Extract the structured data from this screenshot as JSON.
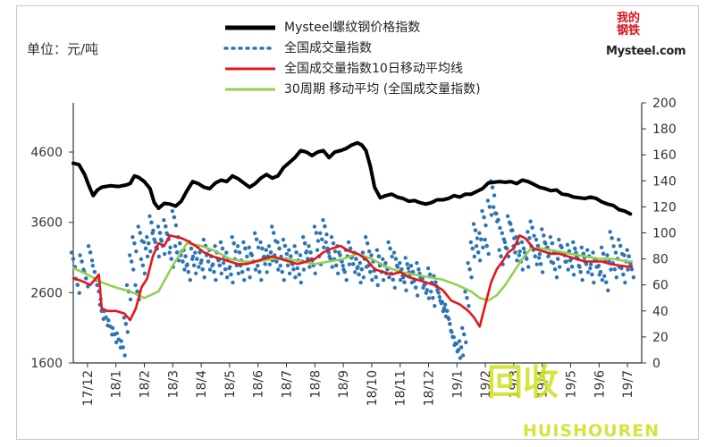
{
  "chart_data": {
    "type": "line",
    "unit_label": "单位：元/吨",
    "legend": [
      {
        "name": "Mysteel螺纹钢价格指数",
        "style": "line",
        "color": "#000000"
      },
      {
        "name": "全国成交量指数",
        "style": "dots",
        "color": "#2e75b6"
      },
      {
        "name": "全国成交量指数10日移动平均线",
        "style": "line",
        "color": "#e8141c"
      },
      {
        "name": "30周期 移动平均 (全国成交量指数)",
        "style": "line",
        "color": "#92d050"
      }
    ],
    "x_tick_labels": [
      "17/12",
      "18/1",
      "18/2",
      "18/3",
      "18/4",
      "18/5",
      "18/6",
      "18/7",
      "18/8",
      "18/9",
      "18/10",
      "18/11",
      "18/12",
      "19/1",
      "19/2",
      "19/3",
      "19/4",
      "19/5",
      "19/6",
      "19/7"
    ],
    "y_left": {
      "ticks": [
        1600,
        2600,
        3600,
        4600
      ],
      "range": [
        1600,
        5300
      ]
    },
    "y_right": {
      "ticks": [
        0,
        20,
        40,
        60,
        80,
        100,
        120,
        140,
        160,
        180,
        200
      ],
      "range": [
        0,
        200
      ]
    },
    "series": [
      {
        "name": "Mysteel螺纹钢价格指数",
        "axis": "left",
        "color": "#000000",
        "x": [
          0,
          0.2,
          0.4,
          0.55,
          0.7,
          0.85,
          1.0,
          1.3,
          1.6,
          1.85,
          2.0,
          2.15,
          2.3,
          2.5,
          2.7,
          2.85,
          3.0,
          3.2,
          3.4,
          3.6,
          3.8,
          4.0,
          4.2,
          4.4,
          4.6,
          4.8,
          5.0,
          5.2,
          5.4,
          5.6,
          5.8,
          6.0,
          6.2,
          6.4,
          6.6,
          6.8,
          7.0,
          7.2,
          7.4,
          7.6,
          7.8,
          8.0,
          8.2,
          8.4,
          8.6,
          8.8,
          9.0,
          9.2,
          9.4,
          9.6,
          9.8,
          10.0,
          10.15,
          10.3,
          10.45,
          10.6,
          10.8,
          11.0,
          11.2,
          11.4,
          11.6,
          11.8,
          12.0,
          12.2,
          12.4,
          12.6,
          12.8,
          13.0,
          13.2,
          13.4,
          13.6,
          13.8,
          14.0,
          14.2,
          14.4,
          14.6,
          14.8,
          15.0,
          15.2,
          15.4,
          15.6,
          15.8,
          16.0,
          16.2,
          16.4,
          16.6,
          16.8,
          17.0,
          17.2,
          17.4,
          17.6,
          17.8,
          18.0,
          18.2,
          18.4,
          18.6,
          18.8,
          19.0,
          19.2,
          19.4,
          19.6
        ],
        "values": [
          4440,
          4420,
          4280,
          4120,
          3980,
          4060,
          4100,
          4120,
          4110,
          4130,
          4150,
          4260,
          4240,
          4180,
          4080,
          3880,
          3800,
          3870,
          3860,
          3830,
          3900,
          4050,
          4180,
          4150,
          4100,
          4080,
          4160,
          4200,
          4180,
          4260,
          4220,
          4160,
          4100,
          4150,
          4230,
          4280,
          4230,
          4260,
          4380,
          4450,
          4520,
          4620,
          4600,
          4550,
          4600,
          4620,
          4520,
          4600,
          4620,
          4650,
          4700,
          4730,
          4700,
          4620,
          4400,
          4100,
          3950,
          3980,
          4000,
          3960,
          3940,
          3900,
          3910,
          3880,
          3860,
          3880,
          3920,
          3920,
          3940,
          3980,
          3960,
          4000,
          4000,
          4040,
          4080,
          4160,
          4170,
          4180,
          4170,
          4180,
          4150,
          4200,
          4180,
          4140,
          4100,
          4080,
          4050,
          4060,
          4000,
          3990,
          3960,
          3950,
          3940,
          3960,
          3940,
          3890,
          3860,
          3840,
          3780,
          3760,
          3720
        ]
      },
      {
        "name": "全国成交量指数",
        "axis": "right",
        "color": "#2e75b6",
        "x": [
          0,
          0.15,
          0.3,
          0.45,
          0.6,
          0.75,
          0.9,
          1.0,
          1.15,
          1.3,
          1.45,
          1.6,
          1.75,
          1.85,
          1.95,
          2.05,
          2.15,
          2.25,
          2.35,
          2.45,
          2.55,
          2.65,
          2.75,
          2.85,
          2.95,
          3.05,
          3.15,
          3.25,
          3.35,
          3.45,
          3.55,
          3.65,
          3.75,
          3.85,
          3.95,
          4.05,
          4.15,
          4.25,
          4.35,
          4.45,
          4.55,
          4.65,
          4.75,
          4.85,
          4.95,
          5.05,
          5.15,
          5.25,
          5.35,
          5.45,
          5.55,
          5.65,
          5.75,
          5.85,
          5.95,
          6.05,
          6.15,
          6.25,
          6.35,
          6.45,
          6.55,
          6.65,
          6.75,
          6.85,
          6.95,
          7.05,
          7.15,
          7.25,
          7.35,
          7.45,
          7.55,
          7.65,
          7.75,
          7.85,
          7.95,
          8.05,
          8.15,
          8.25,
          8.35,
          8.45,
          8.55,
          8.65,
          8.75,
          8.85,
          8.95,
          9.05,
          9.15,
          9.25,
          9.35,
          9.45,
          9.55,
          9.65,
          9.75,
          9.85,
          9.95,
          10.05,
          10.15,
          10.25,
          10.35,
          10.45,
          10.55,
          10.65,
          10.75,
          10.85,
          10.95,
          11.05,
          11.15,
          11.25,
          11.35,
          11.45,
          11.55,
          11.65,
          11.75,
          11.85,
          11.95,
          12.05,
          12.15,
          12.25,
          12.35,
          12.45,
          12.55,
          12.65,
          12.75,
          12.85,
          12.95,
          13.05,
          13.15,
          13.25,
          13.35,
          13.45,
          13.55,
          13.65,
          13.75,
          13.85,
          13.95,
          14.05,
          14.15,
          14.25,
          14.35,
          14.45,
          14.55,
          14.65,
          14.75,
          14.85,
          14.95,
          15.05,
          15.15,
          15.25,
          15.35,
          15.45,
          15.55,
          15.65,
          15.75,
          15.85,
          15.95,
          16.05,
          16.15,
          16.25,
          16.35,
          16.45,
          16.55,
          16.65,
          16.75,
          16.85,
          16.95,
          17.05,
          17.15,
          17.25,
          17.35,
          17.45,
          17.55,
          17.65,
          17.75,
          17.85,
          17.95,
          18.05,
          18.15,
          18.25,
          18.35,
          18.45,
          18.55,
          18.65,
          18.75,
          18.85,
          18.95,
          19.05,
          19.15,
          19.25,
          19.35,
          19.45,
          19.55,
          19.65
        ],
        "values": [
          80,
          60,
          78,
          65,
          85,
          70,
          55,
          40,
          35,
          28,
          22,
          18,
          12,
          30,
          55,
          78,
          92,
          55,
          100,
          75,
          88,
          92,
          108,
          95,
          88,
          100,
          90,
          105,
          95,
          80,
          112,
          85,
          92,
          78,
          82,
          70,
          88,
          75,
          80,
          85,
          72,
          90,
          78,
          82,
          70,
          85,
          75,
          88,
          72,
          80,
          68,
          92,
          75,
          85,
          70,
          88,
          72,
          84,
          78,
          95,
          70,
          88,
          76,
          82,
          85,
          100,
          78,
          88,
          70,
          90,
          75,
          82,
          72,
          85,
          68,
          78,
          92,
          80,
          85,
          75,
          100,
          82,
          95,
          105,
          88,
          80,
          92,
          75,
          85,
          78,
          70,
          82,
          88,
          76,
          80,
          68,
          72,
          80,
          92,
          70,
          78,
          66,
          82,
          70,
          75,
          72,
          88,
          64,
          80,
          70,
          72,
          62,
          76,
          68,
          70,
          58,
          72,
          64,
          60,
          56,
          68,
          50,
          62,
          54,
          46,
          42,
          40,
          30,
          20,
          15,
          10,
          12,
          22,
          50,
          72,
          88,
          102,
          85,
          95,
          112,
          90,
          120,
          135,
          115,
          110,
          82,
          95,
          88,
          108,
          102,
          85,
          92,
          78,
          88,
          80,
          96,
          104,
          82,
          90,
          76,
          98,
          88,
          84,
          92,
          72,
          80,
          90,
          84,
          78,
          86,
          74,
          88,
          80,
          70,
          84,
          76,
          82,
          68,
          80,
          74,
          70,
          84,
          62,
          78,
          96,
          72,
          80,
          90,
          68,
          78,
          82,
          72
        ],
        "chart_type": "scatter"
      },
      {
        "name": "全国成交量指数10日移动平均线",
        "axis": "right",
        "color": "#e8141c",
        "x": [
          0,
          0.3,
          0.6,
          0.9,
          1.0,
          1.2,
          1.5,
          1.8,
          2.0,
          2.2,
          2.4,
          2.6,
          2.8,
          3.0,
          3.2,
          3.4,
          3.6,
          3.8,
          4.0,
          4.3,
          4.6,
          4.9,
          5.2,
          5.5,
          5.8,
          6.1,
          6.4,
          6.7,
          7.0,
          7.3,
          7.6,
          7.9,
          8.2,
          8.5,
          8.8,
          9.1,
          9.4,
          9.7,
          10.0,
          10.3,
          10.6,
          10.9,
          11.2,
          11.5,
          11.8,
          12.1,
          12.4,
          12.7,
          13.0,
          13.3,
          13.6,
          13.9,
          14.1,
          14.3,
          14.5,
          14.7,
          14.9,
          15.1,
          15.3,
          15.5,
          15.7,
          15.9,
          16.2,
          16.5,
          16.8,
          17.1,
          17.4,
          17.7,
          18.0,
          18.3,
          18.6,
          18.9,
          19.2,
          19.5,
          19.65
        ],
        "values": [
          65,
          63,
          60,
          68,
          42,
          40,
          40,
          38,
          33,
          42,
          58,
          65,
          82,
          92,
          90,
          98,
          97,
          96,
          94,
          90,
          85,
          82,
          80,
          78,
          76,
          76,
          78,
          80,
          82,
          80,
          78,
          76,
          78,
          80,
          85,
          88,
          90,
          86,
          84,
          80,
          72,
          70,
          68,
          70,
          66,
          64,
          62,
          60,
          56,
          48,
          45,
          40,
          35,
          28,
          45,
          62,
          72,
          78,
          85,
          88,
          98,
          96,
          88,
          86,
          84,
          84,
          82,
          80,
          78,
          78,
          78,
          76,
          75,
          74,
          74
        ]
      },
      {
        "name": "30周期 移动平均 (全国成交量指数)",
        "axis": "right",
        "color": "#92d050",
        "x": [
          0,
          0.5,
          1.0,
          1.5,
          2.0,
          2.5,
          3.0,
          3.5,
          4.0,
          4.5,
          5.0,
          5.5,
          6.0,
          6.5,
          7.0,
          7.5,
          8.0,
          8.5,
          9.0,
          9.5,
          10.0,
          10.5,
          11.0,
          11.5,
          12.0,
          12.5,
          13.0,
          13.5,
          14.0,
          14.3,
          14.6,
          14.9,
          15.2,
          15.5,
          15.8,
          16.1,
          16.5,
          17.0,
          17.5,
          18.0,
          18.5,
          19.0,
          19.5,
          19.65
        ],
        "values": [
          73,
          68,
          62,
          58,
          55,
          50,
          55,
          75,
          92,
          90,
          86,
          80,
          78,
          78,
          80,
          80,
          78,
          76,
          78,
          80,
          84,
          80,
          74,
          70,
          68,
          66,
          64,
          60,
          55,
          50,
          48,
          52,
          60,
          70,
          80,
          88,
          88,
          86,
          84,
          82,
          80,
          80,
          78,
          78
        ]
      }
    ]
  },
  "watermark": {
    "main": "回收",
    "sub": "HUISHOUREN"
  },
  "logo": {
    "zh_top": "我的",
    "zh_bottom": "钢铁",
    "en": "Mysteel.com"
  }
}
